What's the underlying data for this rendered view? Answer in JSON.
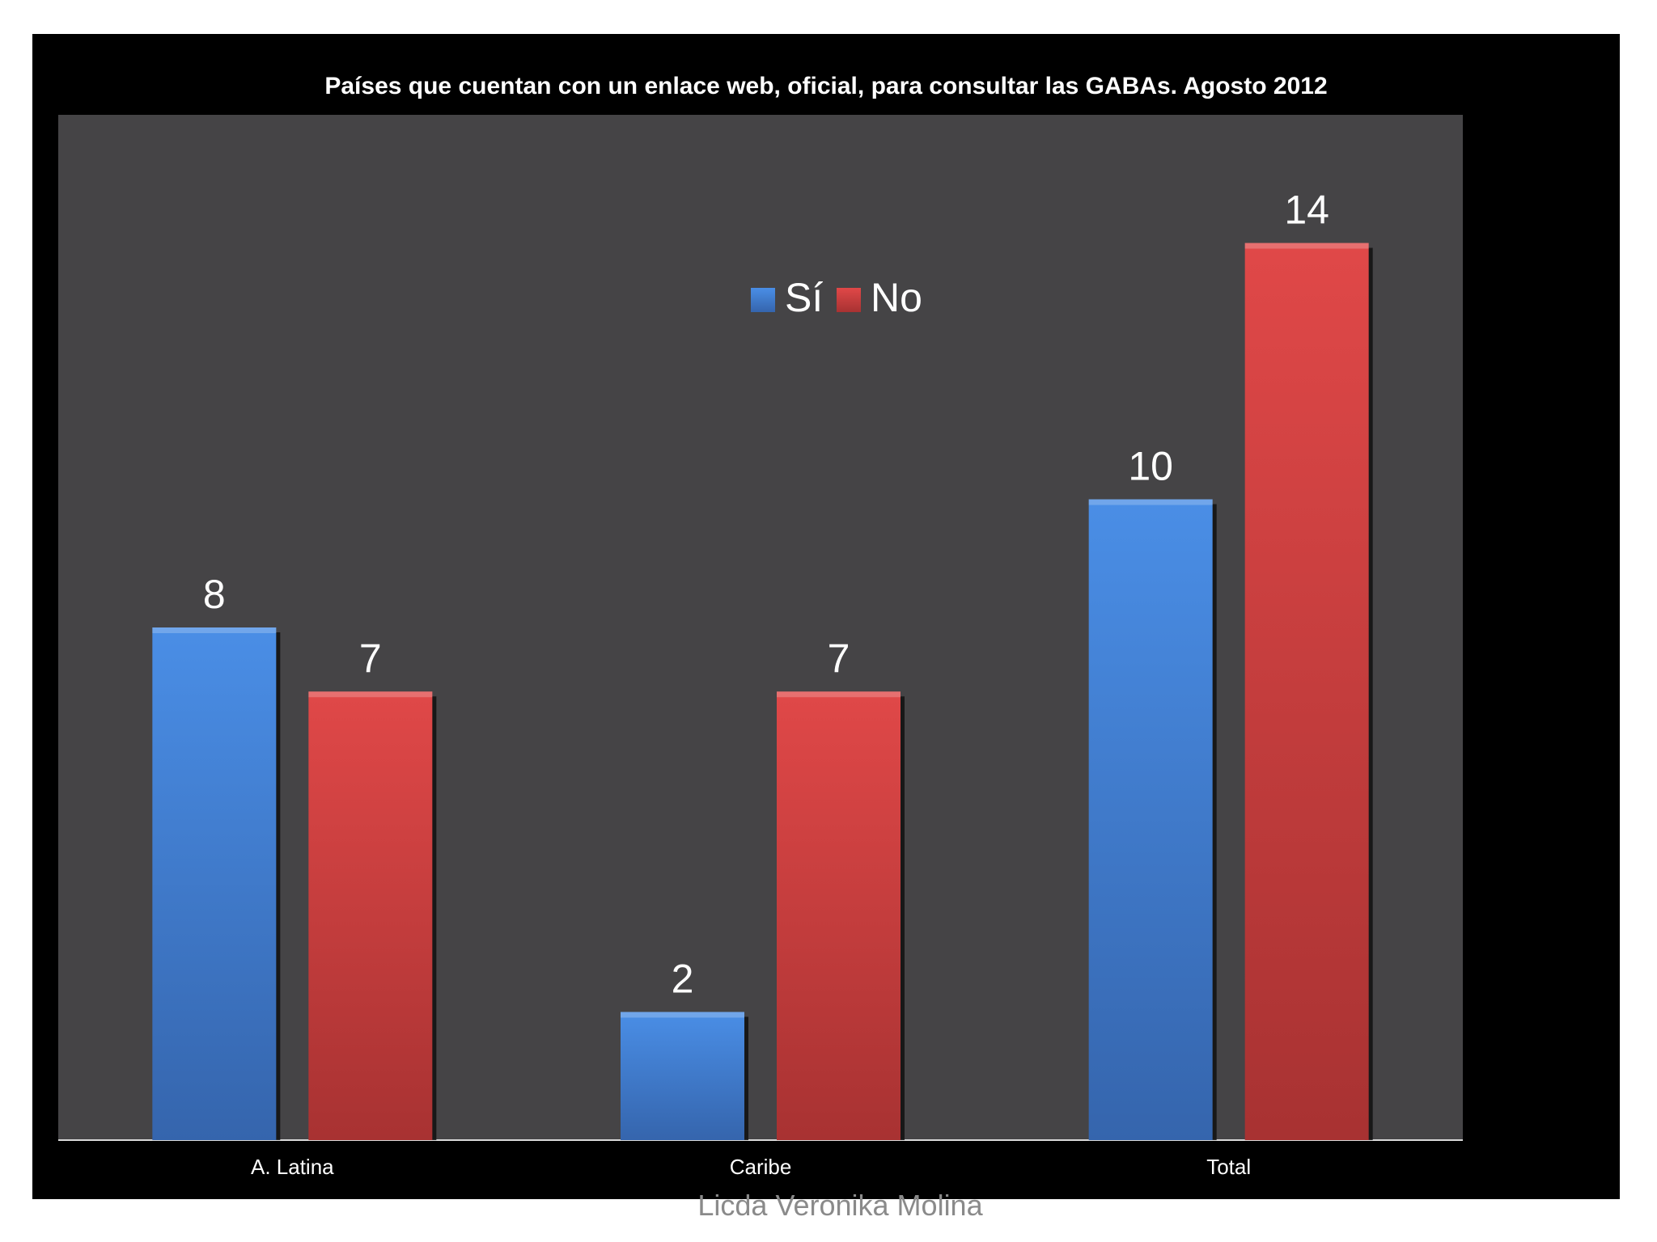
{
  "chart_data": {
    "type": "bar",
    "title": "Países que cuentan con un enlace web, oficial, para consultar las GABAs.  Agosto 2012",
    "categories": [
      "A. Latina",
      "Caribe",
      "Total"
    ],
    "series": [
      {
        "name": "Sí",
        "values": [
          8,
          2,
          10
        ],
        "color": "#3f7fd2"
      },
      {
        "name": "No",
        "values": [
          7,
          7,
          14
        ],
        "color": "#d04040"
      }
    ],
    "ylim": [
      0,
      16
    ],
    "grid": false,
    "legend_position": "top-center",
    "data_labels": true,
    "plot_background": "#444444",
    "background": "#000000"
  },
  "footer": {
    "credit": "Licda Veronika Molina"
  }
}
